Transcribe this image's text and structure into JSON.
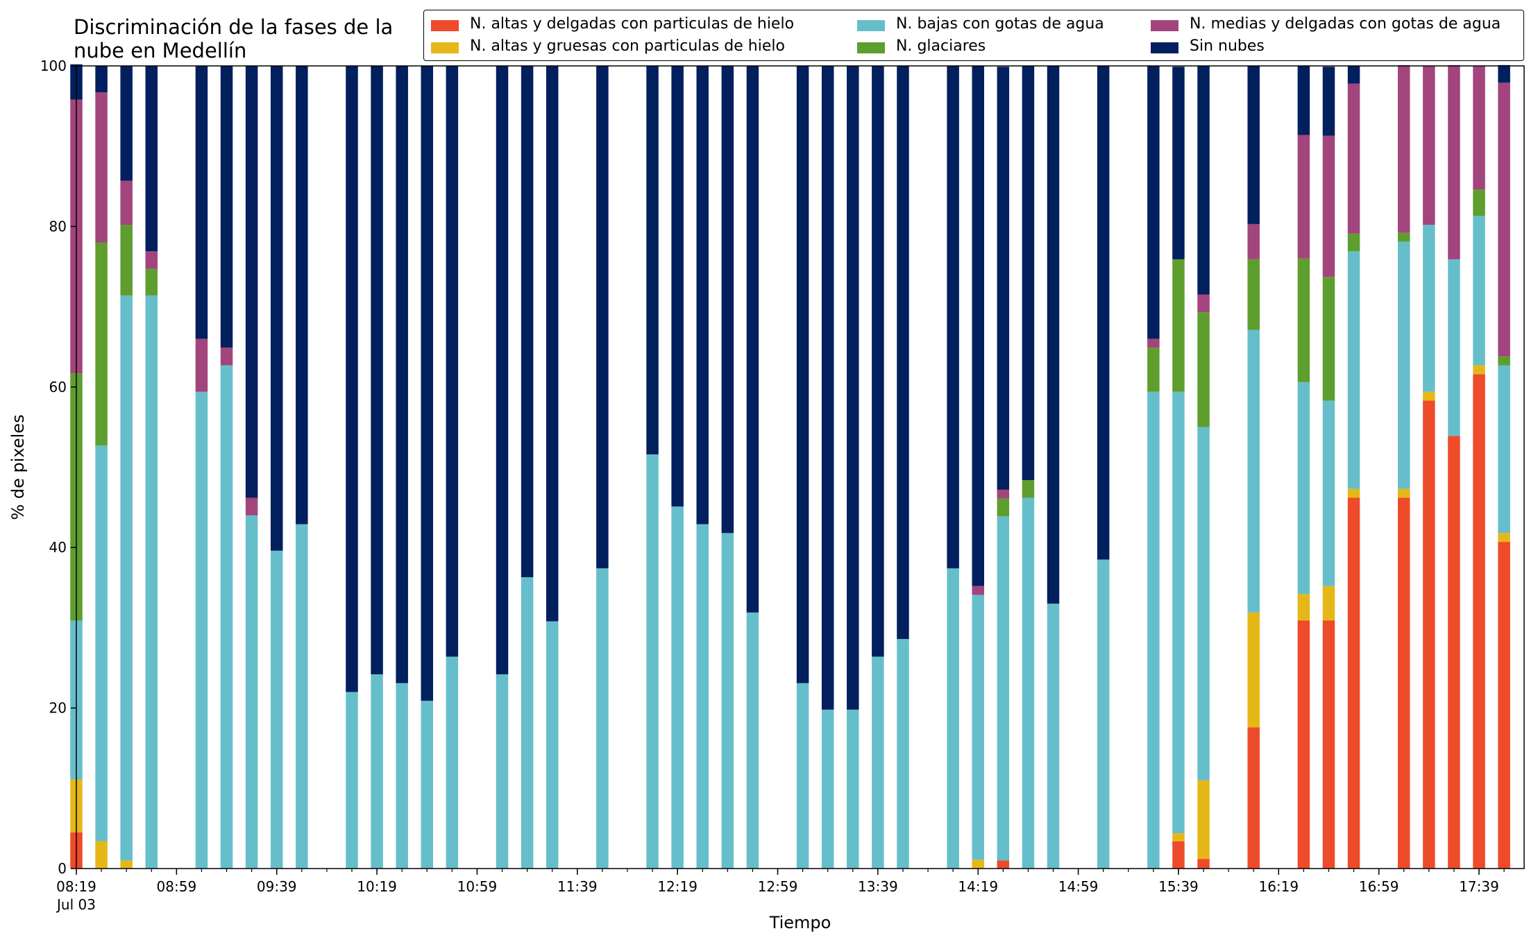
{
  "chart_data": {
    "type": "bar",
    "stacked": true,
    "title": "Discriminación de la fases de la nube en Medellín",
    "title_lines": [
      "Discriminación de la fases de la",
      "nube en Medellín"
    ],
    "xlabel": "Tiempo",
    "ylabel": "% de pixeles",
    "ylim": [
      0,
      100
    ],
    "yticks": [
      "0",
      "20",
      "40",
      "60",
      "80",
      "100"
    ],
    "xtick_labels": [
      "08:19",
      "08:59",
      "09:39",
      "10:19",
      "10:59",
      "11:39",
      "12:19",
      "12:59",
      "13:39",
      "14:19",
      "14:59",
      "15:39",
      "16:19",
      "16:59",
      "17:39"
    ],
    "xtick_sublabel": "Jul 03",
    "x_range_minutes": [
      499,
      1077
    ],
    "grid": false,
    "legend_position": "top-right",
    "legend": [
      {
        "name": "N. altas y delgadas con particulas de hielo",
        "color": "#EE4B2B"
      },
      {
        "name": "N. altas y gruesas con particulas de hielo",
        "color": "#E6B817"
      },
      {
        "name": "N. bajas con gotas de agua",
        "color": "#67BECB"
      },
      {
        "name": "N. glaciares",
        "color": "#5E9E2F"
      },
      {
        "name": "N. medias y delgadas con gotas de agua",
        "color": "#A2457D"
      },
      {
        "name": "Sin nubes",
        "color": "#021F5E"
      }
    ],
    "x": [
      "08:19",
      "08:29",
      "08:39",
      "08:49",
      "09:09",
      "09:19",
      "09:29",
      "09:39",
      "09:49",
      "10:09",
      "10:19",
      "10:29",
      "10:39",
      "10:49",
      "11:09",
      "11:19",
      "11:29",
      "11:49",
      "12:09",
      "12:19",
      "12:29",
      "12:39",
      "12:49",
      "13:09",
      "13:19",
      "13:29",
      "13:39",
      "13:49",
      "14:09",
      "14:19",
      "14:29",
      "14:39",
      "14:49",
      "15:09",
      "15:29",
      "15:39",
      "15:49",
      "16:09",
      "16:29",
      "16:39",
      "16:49",
      "17:09",
      "17:19",
      "17:29",
      "17:39",
      "17:49"
    ],
    "series": [
      {
        "name": "N. altas y delgadas con particulas de hielo",
        "values": [
          4.5,
          0,
          0,
          0,
          0,
          0,
          0,
          0,
          0,
          0,
          0,
          0,
          0,
          0,
          0,
          0,
          0,
          0,
          0,
          0,
          0,
          0,
          0,
          0,
          0,
          0,
          0,
          0,
          0,
          0,
          1.0,
          0,
          0,
          0,
          0,
          3.4,
          1.2,
          17.6,
          30.9,
          30.9,
          46.2,
          46.2,
          58.3,
          53.9,
          61.6,
          40.7
        ]
      },
      {
        "name": "N. altas y gruesas con particulas de hielo",
        "values": [
          6.6,
          3.4,
          1.0,
          0,
          0,
          0,
          0,
          0,
          0,
          0,
          0,
          0,
          0,
          0,
          0,
          0,
          0,
          0,
          0,
          0,
          0,
          0,
          0,
          0,
          0,
          0,
          0,
          0,
          0,
          1.1,
          0,
          0,
          0,
          0,
          0,
          1.0,
          9.8,
          14.3,
          3.3,
          4.3,
          1.1,
          1.1,
          1.1,
          0,
          1.1,
          1.1
        ]
      },
      {
        "name": "N. bajas con gotas de agua",
        "values": [
          19.8,
          49.3,
          70.4,
          71.4,
          59.4,
          62.7,
          44.0,
          39.6,
          42.9,
          22.0,
          24.2,
          23.1,
          20.9,
          26.4,
          24.2,
          36.3,
          30.8,
          37.4,
          51.6,
          45.1,
          42.9,
          41.8,
          31.9,
          23.1,
          19.8,
          19.8,
          26.4,
          28.6,
          37.4,
          33.0,
          42.9,
          46.2,
          33.0,
          38.5,
          59.4,
          55.0,
          44.0,
          35.2,
          26.4,
          23.1,
          29.6,
          30.8,
          20.8,
          22.0,
          18.6,
          20.9
        ]
      },
      {
        "name": "N. glaciares",
        "values": [
          30.8,
          25.3,
          8.8,
          3.3,
          0,
          0,
          0,
          0,
          0,
          0,
          0,
          0,
          0,
          0,
          0,
          0,
          0,
          0,
          0,
          0,
          0,
          0,
          0,
          0,
          0,
          0,
          0,
          0,
          0,
          0,
          2.2,
          2.2,
          0,
          0,
          5.5,
          16.5,
          14.3,
          8.8,
          15.4,
          15.4,
          2.2,
          1.1,
          0,
          0,
          3.3,
          1.1
        ]
      },
      {
        "name": "N. medias y delgadas con gotas de agua",
        "values": [
          34.1,
          18.7,
          5.5,
          2.2,
          6.6,
          2.2,
          2.2,
          0,
          0,
          0,
          0,
          0,
          0,
          0,
          0,
          0,
          0,
          0,
          0,
          0,
          0,
          0,
          0,
          0,
          0,
          0,
          0,
          0,
          0,
          1.1,
          1.1,
          0,
          0,
          0,
          1.1,
          0,
          2.2,
          4.4,
          15.4,
          17.6,
          18.7,
          20.9,
          19.8,
          24.2,
          15.4,
          34.1
        ]
      },
      {
        "name": "Sin nubes",
        "values": [
          4.4,
          3.3,
          14.3,
          23.1,
          34.0,
          35.1,
          53.8,
          60.4,
          57.1,
          78.0,
          75.8,
          76.9,
          79.1,
          73.6,
          75.8,
          63.7,
          69.2,
          62.6,
          48.4,
          54.9,
          57.1,
          58.2,
          68.1,
          76.9,
          80.2,
          80.2,
          73.6,
          71.4,
          62.6,
          64.8,
          52.7,
          51.6,
          67.0,
          61.5,
          34.0,
          24.0,
          28.5,
          19.7,
          8.6,
          8.6,
          2.2,
          0,
          0,
          0,
          0,
          2.2
        ]
      }
    ]
  }
}
